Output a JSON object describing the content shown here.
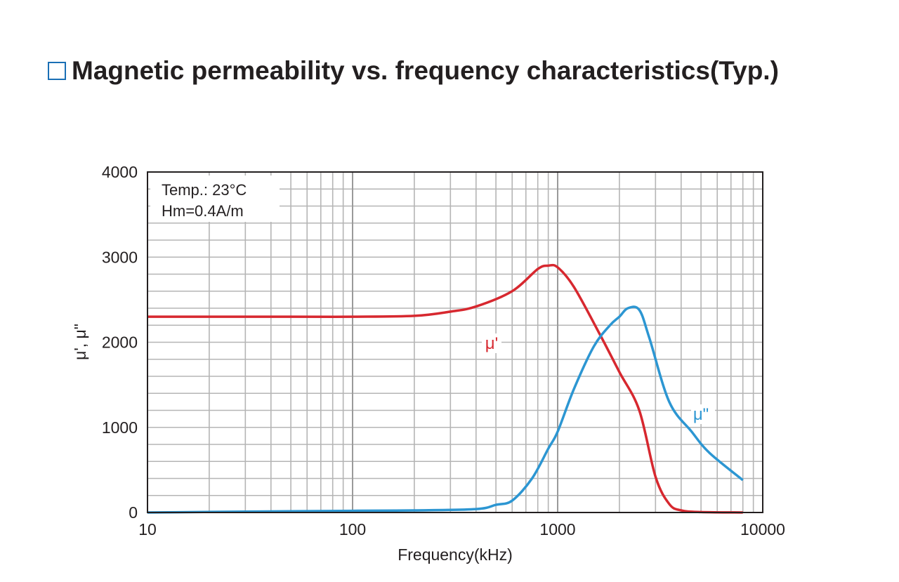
{
  "chart_data": {
    "type": "line",
    "title": "Magnetic permeability vs. frequency characteristics(Typ.)",
    "xlabel": "Frequency(kHz)",
    "ylabel": "μ', μ\"",
    "xscale": "log",
    "xlim": [
      10,
      10000
    ],
    "ylim": [
      0,
      4000
    ],
    "xticks": [
      "10",
      "100",
      "1000",
      "10000"
    ],
    "xtick_values": [
      10,
      100,
      1000,
      10000
    ],
    "yticks": [
      "0",
      "1000",
      "2000",
      "3000",
      "4000"
    ],
    "ytick_values": [
      0,
      1000,
      2000,
      3000,
      4000
    ],
    "grid": true,
    "annotation": [
      "Temp.: 23°C",
      "Hm=0.4A/m"
    ],
    "series": [
      {
        "name": "μ'",
        "color": "#d7282f",
        "x": [
          10,
          50,
          100,
          200,
          300,
          400,
          600,
          800,
          900,
          1000,
          1200,
          1600,
          2000,
          2500,
          3000,
          3500,
          4000,
          5000,
          8000
        ],
        "y": [
          2300,
          2300,
          2300,
          2310,
          2360,
          2420,
          2600,
          2860,
          2900,
          2880,
          2650,
          2100,
          1650,
          1200,
          420,
          100,
          25,
          5,
          0
        ]
      },
      {
        "name": "μ\"",
        "color": "#2c96d2",
        "x": [
          10,
          30,
          100,
          200,
          400,
          500,
          600,
          750,
          900,
          1000,
          1200,
          1500,
          1800,
          2000,
          2200,
          2500,
          2800,
          3500,
          4500,
          5500,
          8000
        ],
        "y": [
          0,
          10,
          20,
          25,
          40,
          90,
          140,
          400,
          750,
          950,
          1450,
          1950,
          2200,
          2300,
          2400,
          2380,
          2050,
          1300,
          950,
          700,
          380
        ]
      }
    ]
  }
}
